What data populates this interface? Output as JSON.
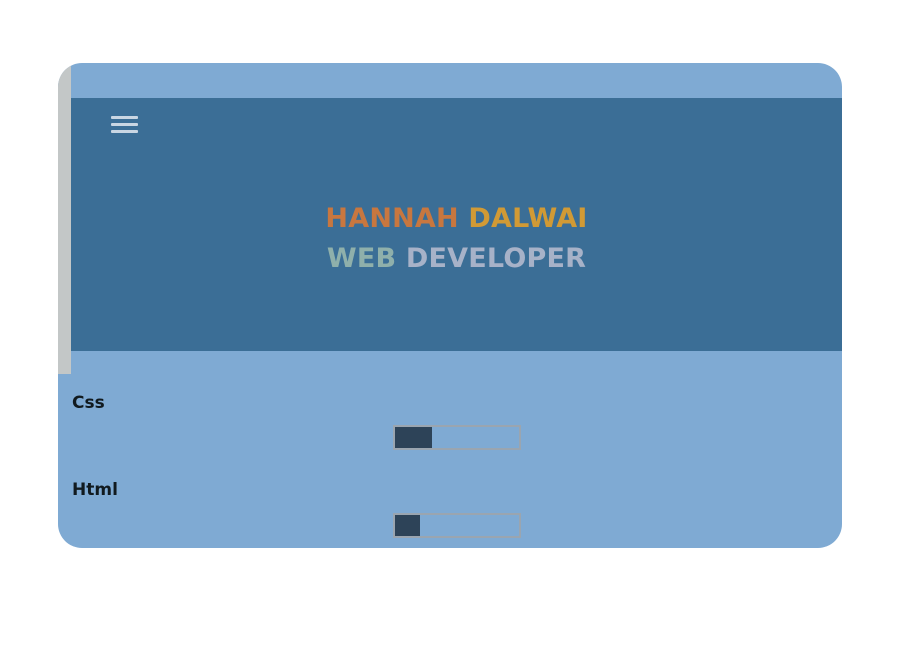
{
  "header": {
    "menu_icon": "hamburger-icon",
    "name_first": "HANNAH",
    "name_last": "DALWAI",
    "role_first": "WEB",
    "role_last": "DEVELOPER"
  },
  "colors": {
    "page_bg": "#7faad3",
    "hero_bg": "#3b6e96",
    "name_first": "#c8773f",
    "name_last": "#d19a35",
    "role_first": "#8fb0ab",
    "role_last": "#a7b2c8",
    "bar_fill": "#2d4358"
  },
  "skills": [
    {
      "label": "Css",
      "level": 0.3
    },
    {
      "label": "Html",
      "level": 0.2
    }
  ]
}
